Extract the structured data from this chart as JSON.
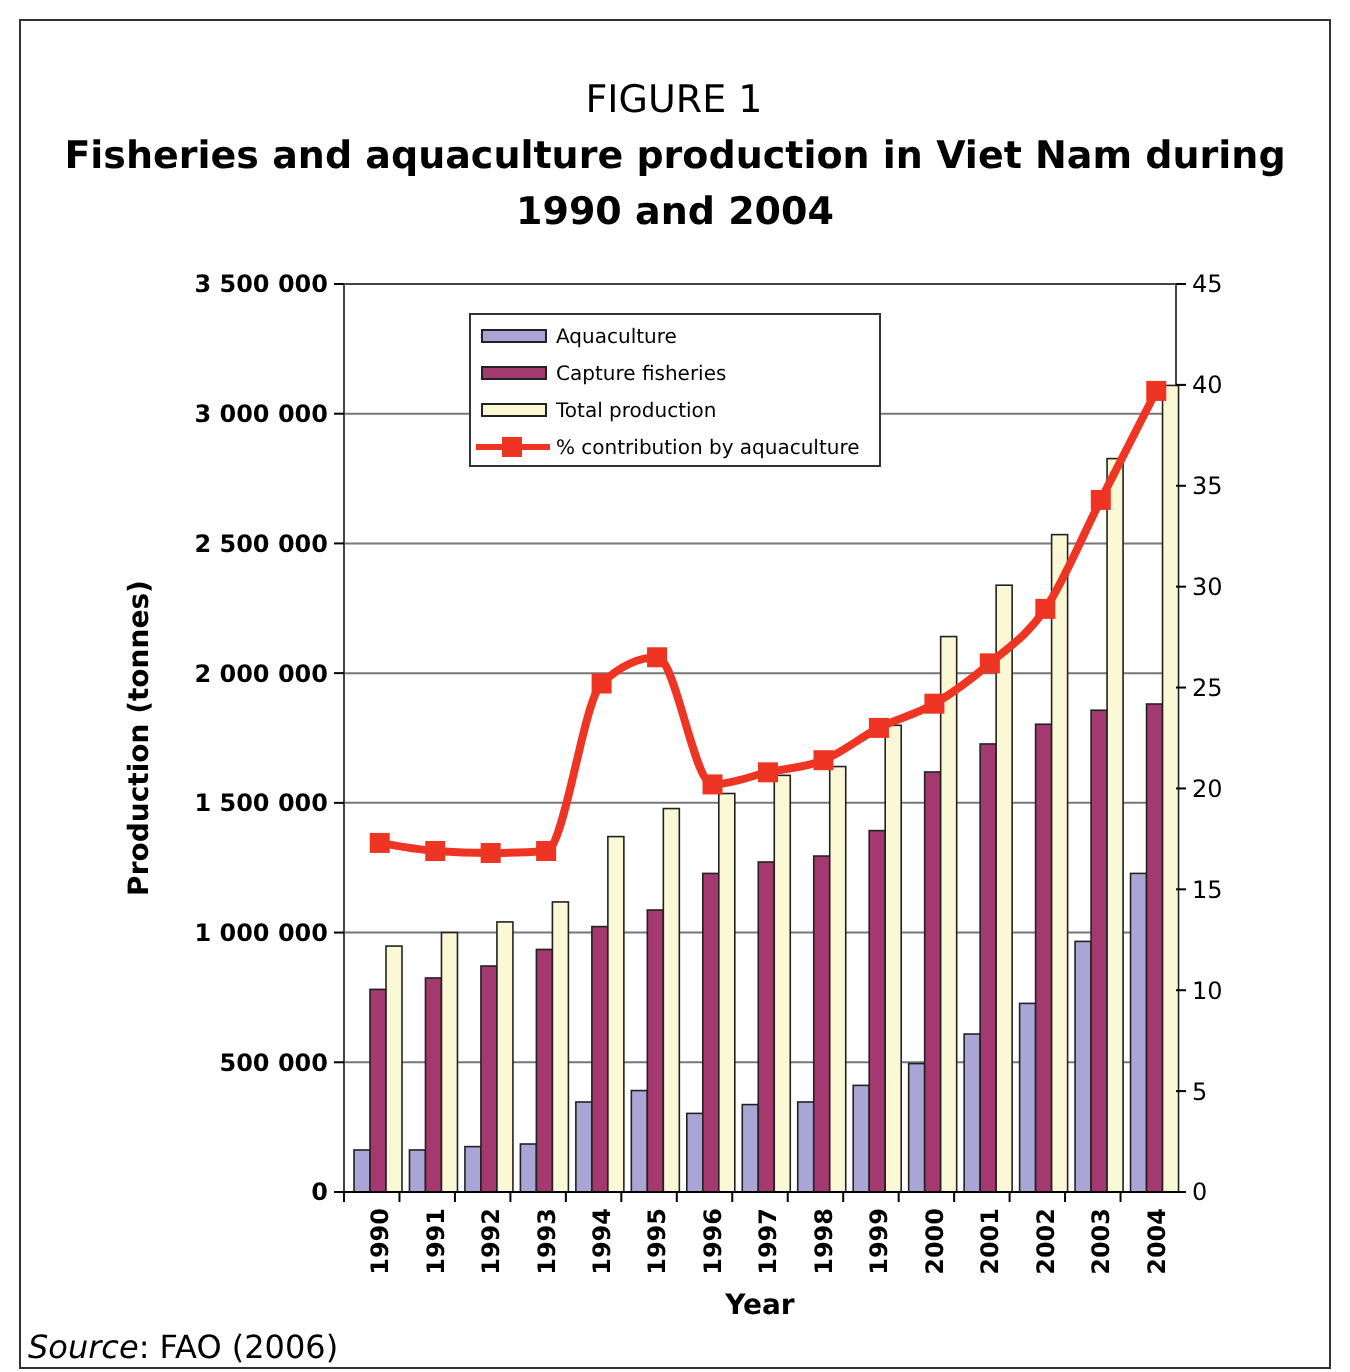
{
  "chart_data": {
    "type": "bar",
    "title": "FIGURE 1",
    "subtitle": "Fisheries and aquaculture production in Viet Nam during 1990 and 2004",
    "xlabel": "Year",
    "ylabel": "Production (tonnes)",
    "categories": [
      "1990",
      "1991",
      "1992",
      "1993",
      "1994",
      "1995",
      "1996",
      "1997",
      "1998",
      "1999",
      "2000",
      "2001",
      "2002",
      "2003",
      "2004"
    ],
    "series": [
      {
        "name": "Aquaculture",
        "color": "#a9a6d6",
        "values": [
          162000,
          162000,
          175000,
          185000,
          347000,
          391000,
          303000,
          337000,
          347000,
          411000,
          495000,
          609000,
          727000,
          966000,
          1228000
        ]
      },
      {
        "name": "Capture  fisheries",
        "color": "#a3396e",
        "values": [
          781000,
          825000,
          871000,
          935000,
          1023000,
          1087000,
          1228000,
          1272000,
          1295000,
          1393000,
          1619000,
          1727000,
          1803000,
          1857000,
          1881000
        ]
      },
      {
        "name": "Total production",
        "color": "#fbf8d6",
        "values": [
          948000,
          1000000,
          1041000,
          1118000,
          1370000,
          1478000,
          1536000,
          1606000,
          1640000,
          1799000,
          2141000,
          2339000,
          2534000,
          2827000,
          3109000
        ]
      },
      {
        "name": "% contribution by aquaculture",
        "type": "line",
        "axis": "y2",
        "color": "#ee3524",
        "marker": "square",
        "values": [
          17.3,
          16.9,
          16.8,
          16.9,
          25.2,
          26.5,
          20.2,
          20.8,
          21.4,
          23.0,
          24.2,
          26.2,
          28.9,
          34.3,
          39.7
        ]
      }
    ],
    "ylim": [
      0,
      3500000
    ],
    "yticks": [
      0,
      {
        "value": 500000,
        "label": "500 000"
      },
      {
        "value": 1000000,
        "label": "1 000 000"
      },
      {
        "value": 1500000,
        "label": "1 500 000"
      },
      {
        "value": 2000000,
        "label": "2 000 000"
      },
      {
        "value": 2500000,
        "label": "2 500 000"
      },
      {
        "value": 3000000,
        "label": "3 000 000"
      },
      {
        "value": 3500000,
        "label": "3 500 000"
      }
    ],
    "y2lim": [
      0,
      45
    ],
    "y2ticks": [
      0,
      5,
      10,
      15,
      20,
      25,
      30,
      35,
      40,
      45
    ],
    "grid": "y",
    "legend": "top left",
    "annotations": [
      "Source: FAO (2006)"
    ]
  }
}
